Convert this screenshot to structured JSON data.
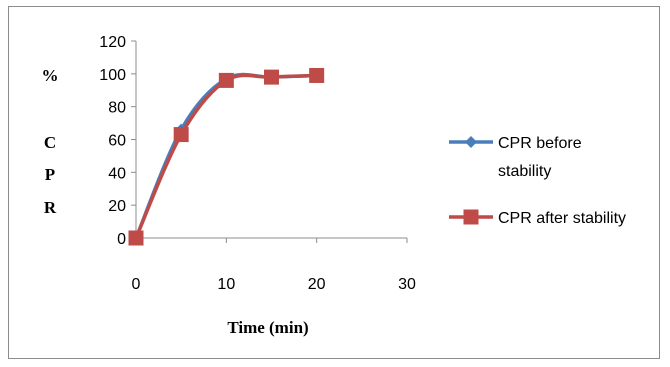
{
  "chart_data": {
    "type": "line",
    "title": "",
    "xlabel": "Time (min)",
    "ylabel_chars": [
      "%",
      "C",
      "P",
      "R"
    ],
    "xlim": [
      0,
      30
    ],
    "ylim": [
      0,
      120
    ],
    "x_ticks": [
      0,
      10,
      20,
      30
    ],
    "y_ticks": [
      0,
      20,
      40,
      60,
      80,
      100,
      120
    ],
    "grid": false,
    "legend_position": "right",
    "smooth": true,
    "series": [
      {
        "name": "CPR before stability",
        "legend_lines": [
          "CPR before",
          "stability"
        ],
        "color": "#4a7ebb",
        "marker": "diamond",
        "x": [
          0,
          5,
          10,
          15,
          20
        ],
        "y": [
          0,
          66,
          97,
          98,
          99
        ]
      },
      {
        "name": "CPR after stability",
        "legend_lines": [
          "CPR after stability"
        ],
        "color": "#be4b48",
        "marker": "square",
        "x": [
          0,
          5,
          10,
          15,
          20
        ],
        "y": [
          0,
          63,
          96,
          98,
          99
        ]
      }
    ]
  }
}
